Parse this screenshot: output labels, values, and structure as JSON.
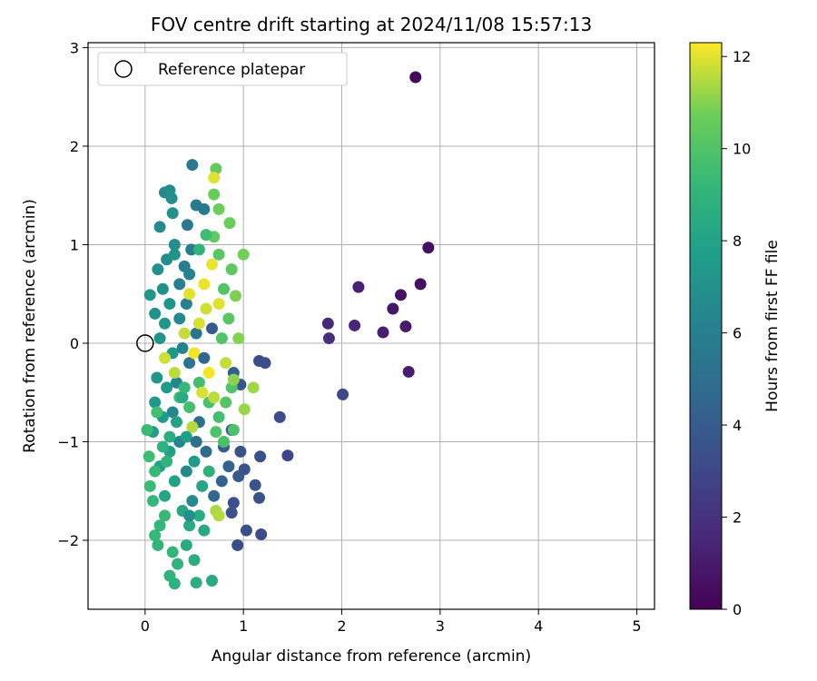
{
  "chart_data": {
    "type": "scatter",
    "title": "FOV centre drift starting at 2024/11/08 15:57:13",
    "xlabel": "Angular distance from reference (arcmin)",
    "ylabel": "Rotation from reference (arcmin)",
    "xlim": [
      -0.58,
      5.18
    ],
    "ylim": [
      -2.7,
      3.05
    ],
    "xticks": [
      0,
      1,
      2,
      3,
      4,
      5
    ],
    "yticks": [
      -2,
      -1,
      0,
      1,
      2,
      3
    ],
    "grid": true,
    "legend": {
      "position": "top-left",
      "entries": [
        "Reference platepar"
      ]
    },
    "reference_point": {
      "x": 0,
      "y": 0
    },
    "colorbar": {
      "label": "Hours from first FF file",
      "range": [
        0,
        12.3
      ],
      "ticks": [
        0,
        2,
        4,
        6,
        8,
        10,
        12
      ],
      "colormap": "viridis"
    },
    "points": [
      {
        "x": 2.75,
        "y": 2.7,
        "h": 0.3
      },
      {
        "x": 2.88,
        "y": 0.97,
        "h": 0.5
      },
      {
        "x": 2.8,
        "y": 0.6,
        "h": 0.6
      },
      {
        "x": 2.6,
        "y": 0.49,
        "h": 0.7
      },
      {
        "x": 2.52,
        "y": 0.35,
        "h": 0.9
      },
      {
        "x": 2.65,
        "y": 0.17,
        "h": 1.0
      },
      {
        "x": 2.42,
        "y": 0.11,
        "h": 1.2
      },
      {
        "x": 2.68,
        "y": -0.29,
        "h": 1.1
      },
      {
        "x": 2.17,
        "y": 0.57,
        "h": 1.3
      },
      {
        "x": 2.13,
        "y": 0.18,
        "h": 1.5
      },
      {
        "x": 1.86,
        "y": 0.2,
        "h": 1.6
      },
      {
        "x": 1.87,
        "y": 0.05,
        "h": 1.8
      },
      {
        "x": 2.01,
        "y": -0.52,
        "h": 3.0
      },
      {
        "x": 1.45,
        "y": -1.14,
        "h": 2.9
      },
      {
        "x": 1.37,
        "y": -0.75,
        "h": 3.2
      },
      {
        "x": 1.22,
        "y": -0.2,
        "h": 3.3
      },
      {
        "x": 1.16,
        "y": -0.18,
        "h": 3.3
      },
      {
        "x": 1.18,
        "y": -1.94,
        "h": 3.1
      },
      {
        "x": 1.03,
        "y": -1.9,
        "h": 3.4
      },
      {
        "x": 0.94,
        "y": -2.05,
        "h": 3.3
      },
      {
        "x": 1.16,
        "y": -1.57,
        "h": 3.5
      },
      {
        "x": 1.12,
        "y": -1.44,
        "h": 3.6
      },
      {
        "x": 1.17,
        "y": -1.15,
        "h": 3.4
      },
      {
        "x": 0.97,
        "y": -1.1,
        "h": 3.5
      },
      {
        "x": 1.01,
        "y": -1.28,
        "h": 3.6
      },
      {
        "x": 0.95,
        "y": -1.35,
        "h": 3.8
      },
      {
        "x": 0.88,
        "y": -1.72,
        "h": 3.5
      },
      {
        "x": 0.9,
        "y": -1.62,
        "h": 3.4
      },
      {
        "x": 0.97,
        "y": -0.42,
        "h": 3.7
      },
      {
        "x": 0.88,
        "y": -0.88,
        "h": 4.0
      },
      {
        "x": 0.8,
        "y": -1.05,
        "h": 4.1
      },
      {
        "x": 0.78,
        "y": -1.4,
        "h": 4.3
      },
      {
        "x": 0.85,
        "y": -1.25,
        "h": 4.4
      },
      {
        "x": 0.9,
        "y": -0.3,
        "h": 4.2
      },
      {
        "x": 0.7,
        "y": -1.55,
        "h": 4.6
      },
      {
        "x": 0.62,
        "y": -1.1,
        "h": 4.8
      },
      {
        "x": 0.55,
        "y": -0.8,
        "h": 5.0
      },
      {
        "x": 0.45,
        "y": -0.2,
        "h": 5.2
      },
      {
        "x": 0.52,
        "y": 0.1,
        "h": 5.3
      },
      {
        "x": 0.48,
        "y": 1.81,
        "h": 5.6
      },
      {
        "x": 0.43,
        "y": 1.2,
        "h": 5.5
      },
      {
        "x": 0.52,
        "y": 1.4,
        "h": 5.7
      },
      {
        "x": 0.6,
        "y": 1.36,
        "h": 5.6
      },
      {
        "x": 0.47,
        "y": 0.95,
        "h": 5.8
      },
      {
        "x": 0.4,
        "y": 0.78,
        "h": 5.9
      },
      {
        "x": 0.35,
        "y": 0.6,
        "h": 6.0
      },
      {
        "x": 0.42,
        "y": 0.4,
        "h": 6.1
      },
      {
        "x": 0.38,
        "y": -0.05,
        "h": 6.2
      },
      {
        "x": 0.32,
        "y": -0.4,
        "h": 6.3
      },
      {
        "x": 0.28,
        "y": -0.7,
        "h": 6.4
      },
      {
        "x": 0.35,
        "y": -1.0,
        "h": 6.3
      },
      {
        "x": 0.42,
        "y": -1.3,
        "h": 6.5
      },
      {
        "x": 0.48,
        "y": -1.6,
        "h": 6.6
      },
      {
        "x": 0.2,
        "y": 1.53,
        "h": 6.5
      },
      {
        "x": 0.25,
        "y": 1.55,
        "h": 6.7
      },
      {
        "x": 0.27,
        "y": 1.47,
        "h": 6.8
      },
      {
        "x": 0.28,
        "y": 1.32,
        "h": 6.9
      },
      {
        "x": 0.15,
        "y": 1.18,
        "h": 6.6
      },
      {
        "x": 0.22,
        "y": 0.85,
        "h": 6.8
      },
      {
        "x": 0.13,
        "y": 0.75,
        "h": 7.0
      },
      {
        "x": 0.3,
        "y": 0.9,
        "h": 7.1
      },
      {
        "x": 0.18,
        "y": 0.55,
        "h": 7.0
      },
      {
        "x": 0.25,
        "y": 0.4,
        "h": 7.2
      },
      {
        "x": 0.1,
        "y": 0.3,
        "h": 7.1
      },
      {
        "x": 0.2,
        "y": 0.2,
        "h": 7.3
      },
      {
        "x": 0.15,
        "y": 0.05,
        "h": 7.2
      },
      {
        "x": 0.28,
        "y": -0.1,
        "h": 7.4
      },
      {
        "x": 0.12,
        "y": -0.35,
        "h": 7.3
      },
      {
        "x": 0.22,
        "y": -0.45,
        "h": 7.5
      },
      {
        "x": 0.1,
        "y": -0.6,
        "h": 7.4
      },
      {
        "x": 0.18,
        "y": -0.75,
        "h": 7.6
      },
      {
        "x": 0.08,
        "y": -0.9,
        "h": 7.7
      },
      {
        "x": 0.25,
        "y": -1.1,
        "h": 7.8
      },
      {
        "x": 0.15,
        "y": -1.25,
        "h": 7.9
      },
      {
        "x": 0.3,
        "y": -1.4,
        "h": 8.0
      },
      {
        "x": 0.2,
        "y": -1.55,
        "h": 8.1
      },
      {
        "x": 0.38,
        "y": -1.7,
        "h": 8.2
      },
      {
        "x": 0.45,
        "y": -1.85,
        "h": 8.3
      },
      {
        "x": 0.42,
        "y": -2.05,
        "h": 8.4
      },
      {
        "x": 0.55,
        "y": -1.75,
        "h": 8.5
      },
      {
        "x": 0.6,
        "y": -1.9,
        "h": 8.3
      },
      {
        "x": 0.5,
        "y": -2.2,
        "h": 8.6
      },
      {
        "x": 0.68,
        "y": -2.41,
        "h": 8.4
      },
      {
        "x": 0.52,
        "y": -2.43,
        "h": 8.7
      },
      {
        "x": 0.3,
        "y": -2.44,
        "h": 8.8
      },
      {
        "x": 0.25,
        "y": -2.36,
        "h": 8.9
      },
      {
        "x": 0.33,
        "y": -2.24,
        "h": 9.0
      },
      {
        "x": 0.28,
        "y": -2.12,
        "h": 9.1
      },
      {
        "x": 0.13,
        "y": -2.05,
        "h": 9.0
      },
      {
        "x": 0.1,
        "y": -1.95,
        "h": 9.2
      },
      {
        "x": 0.15,
        "y": -1.85,
        "h": 9.1
      },
      {
        "x": 0.2,
        "y": -1.75,
        "h": 9.3
      },
      {
        "x": 0.08,
        "y": -1.6,
        "h": 9.2
      },
      {
        "x": 0.05,
        "y": -1.45,
        "h": 9.4
      },
      {
        "x": 0.1,
        "y": -1.3,
        "h": 9.3
      },
      {
        "x": 0.04,
        "y": -1.15,
        "h": 9.5
      },
      {
        "x": 0.02,
        "y": -0.88,
        "h": 9.4
      },
      {
        "x": 0.12,
        "y": -0.7,
        "h": 9.6
      },
      {
        "x": 0.35,
        "y": -0.55,
        "h": 9.5
      },
      {
        "x": 0.45,
        "y": -0.65,
        "h": 9.7
      },
      {
        "x": 0.55,
        "y": -0.4,
        "h": 9.6
      },
      {
        "x": 0.65,
        "y": -0.6,
        "h": 9.8
      },
      {
        "x": 0.75,
        "y": -0.75,
        "h": 9.7
      },
      {
        "x": 0.72,
        "y": -0.9,
        "h": 9.9
      },
      {
        "x": 0.8,
        "y": -1.0,
        "h": 9.8
      },
      {
        "x": 0.88,
        "y": -0.45,
        "h": 10.0
      },
      {
        "x": 0.9,
        "y": -0.88,
        "h": 9.9
      },
      {
        "x": 0.82,
        "y": -0.6,
        "h": 10.1
      },
      {
        "x": 0.78,
        "y": 0.05,
        "h": 10.0
      },
      {
        "x": 0.85,
        "y": 0.25,
        "h": 10.2
      },
      {
        "x": 0.8,
        "y": 0.55,
        "h": 10.1
      },
      {
        "x": 0.88,
        "y": 0.75,
        "h": 10.3
      },
      {
        "x": 0.75,
        "y": 0.9,
        "h": 10.2
      },
      {
        "x": 0.7,
        "y": 1.08,
        "h": 10.4
      },
      {
        "x": 0.72,
        "y": 1.77,
        "h": 10.5
      },
      {
        "x": 0.7,
        "y": 1.51,
        "h": 10.6
      },
      {
        "x": 0.75,
        "y": 1.36,
        "h": 10.7
      },
      {
        "x": 0.86,
        "y": 1.22,
        "h": 10.6
      },
      {
        "x": 1.0,
        "y": 0.9,
        "h": 10.8
      },
      {
        "x": 0.92,
        "y": 0.48,
        "h": 10.9
      },
      {
        "x": 0.95,
        "y": 0.05,
        "h": 11.0
      },
      {
        "x": 0.9,
        "y": -0.37,
        "h": 11.1
      },
      {
        "x": 1.01,
        "y": -0.67,
        "h": 11.2
      },
      {
        "x": 1.1,
        "y": -0.45,
        "h": 11.3
      },
      {
        "x": 0.72,
        "y": -1.7,
        "h": 11.4
      },
      {
        "x": 0.75,
        "y": -1.75,
        "h": 11.5
      },
      {
        "x": 0.7,
        "y": 1.68,
        "h": 12.0
      },
      {
        "x": 0.6,
        "y": 0.6,
        "h": 12.1
      },
      {
        "x": 0.55,
        "y": 0.2,
        "h": 11.9
      },
      {
        "x": 0.5,
        "y": -0.1,
        "h": 12.2
      },
      {
        "x": 0.45,
        "y": 0.5,
        "h": 12.0
      },
      {
        "x": 0.62,
        "y": 0.35,
        "h": 11.8
      },
      {
        "x": 0.68,
        "y": 0.8,
        "h": 12.1
      },
      {
        "x": 0.4,
        "y": 0.1,
        "h": 11.7
      },
      {
        "x": 0.3,
        "y": -0.3,
        "h": 11.6
      },
      {
        "x": 0.2,
        "y": -0.15,
        "h": 11.8
      },
      {
        "x": 0.65,
        "y": -0.3,
        "h": 12.2
      },
      {
        "x": 0.58,
        "y": -0.5,
        "h": 11.9
      },
      {
        "x": 0.48,
        "y": -0.85,
        "h": 11.5
      },
      {
        "x": 0.7,
        "y": -0.55,
        "h": 11.6
      },
      {
        "x": 0.75,
        "y": 0.4,
        "h": 12.0
      },
      {
        "x": 0.82,
        "y": -0.2,
        "h": 11.7
      },
      {
        "x": 0.38,
        "y": -0.55,
        "h": 8.5
      },
      {
        "x": 0.32,
        "y": -0.8,
        "h": 8.0
      },
      {
        "x": 0.42,
        "y": -0.95,
        "h": 7.8
      },
      {
        "x": 0.5,
        "y": -1.2,
        "h": 7.5
      },
      {
        "x": 0.58,
        "y": -1.45,
        "h": 8.2
      },
      {
        "x": 0.65,
        "y": -1.3,
        "h": 8.8
      },
      {
        "x": 0.35,
        "y": 0.25,
        "h": 6.5
      },
      {
        "x": 0.45,
        "y": 0.7,
        "h": 6.2
      },
      {
        "x": 0.3,
        "y": 1.0,
        "h": 6.8
      },
      {
        "x": 0.55,
        "y": 0.95,
        "h": 9.0
      },
      {
        "x": 0.62,
        "y": 1.1,
        "h": 9.5
      },
      {
        "x": 0.4,
        "y": -0.45,
        "h": 9.2
      },
      {
        "x": 0.25,
        "y": -0.95,
        "h": 8.6
      },
      {
        "x": 0.18,
        "y": -1.05,
        "h": 8.9
      },
      {
        "x": 0.05,
        "y": 0.49,
        "h": 7.3
      },
      {
        "x": 0.22,
        "y": -1.2,
        "h": 9.0
      },
      {
        "x": 0.6,
        "y": -0.15,
        "h": 4.5
      },
      {
        "x": 0.68,
        "y": 0.15,
        "h": 4.0
      },
      {
        "x": 0.52,
        "y": -1.0,
        "h": 5.1
      },
      {
        "x": 0.45,
        "y": -1.75,
        "h": 6.8
      }
    ]
  }
}
